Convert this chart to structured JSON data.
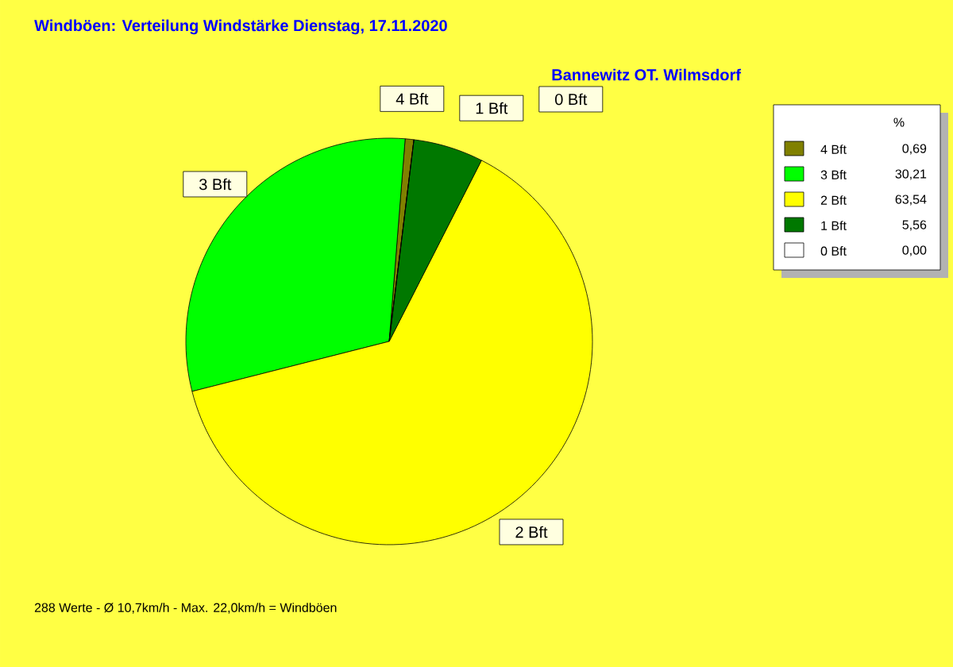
{
  "chart_data": {
    "type": "pie",
    "title": "Windböen: Verteilung Windstärke  Dienstag, 17.11.2020",
    "subtitle": "Bannewitz OT. Wilmsdorf",
    "categories": [
      "4 Bft",
      "3 Bft",
      "2 Bft",
      "1 Bft",
      "0 Bft"
    ],
    "values": [
      0.69,
      30.21,
      63.54,
      5.56,
      0.0
    ],
    "value_labels": [
      "0,69",
      "30,21",
      "63,54",
      "5,56",
      "0,00"
    ],
    "colors": [
      "#808000",
      "#00ff00",
      "#ffff00",
      "#007800",
      "#ffffff"
    ],
    "legend": "top right",
    "legend_title": "%",
    "annotations": [
      "288 Werte   -   Ø 10,7km/h  -  Max. 22,0km/h = Windböen"
    ]
  }
}
